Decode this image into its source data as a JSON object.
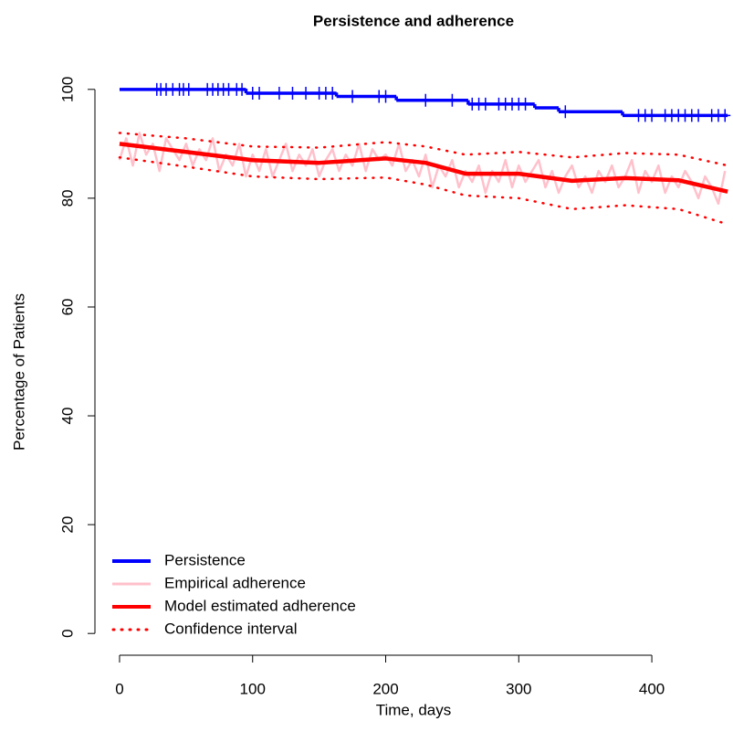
{
  "chart_data": {
    "type": "line",
    "title": "Persistence and adherence",
    "x_label": "Time, days",
    "y_label": "Percentage of Patients",
    "xlim": [
      -18.5,
      461
    ],
    "ylim": [
      -4,
      104
    ],
    "xticks": [
      0,
      100,
      200,
      300,
      400
    ],
    "yticks": [
      0,
      20,
      40,
      60,
      80,
      100
    ],
    "legend_position": "bottom-left",
    "series": [
      {
        "name": "Persistence",
        "color": "#0000ff",
        "style": "step",
        "x": [
          0,
          95,
          163,
          208,
          262,
          312,
          330,
          378,
          457
        ],
        "values": [
          100,
          99.3,
          98.7,
          98,
          97.3,
          96.6,
          95.9,
          95.2,
          95.2
        ]
      },
      {
        "name": "Empirical adherence",
        "color": "#ffc0cb",
        "style": "solid",
        "x": [
          0,
          5,
          10,
          15,
          20,
          25,
          30,
          35,
          40,
          45,
          50,
          55,
          60,
          65,
          70,
          75,
          80,
          85,
          90,
          95,
          100,
          105,
          110,
          115,
          120,
          125,
          130,
          135,
          140,
          145,
          150,
          155,
          160,
          165,
          170,
          175,
          180,
          185,
          190,
          195,
          200,
          205,
          210,
          215,
          220,
          225,
          230,
          235,
          240,
          245,
          250,
          255,
          260,
          265,
          270,
          275,
          280,
          285,
          290,
          295,
          300,
          305,
          310,
          315,
          320,
          325,
          330,
          335,
          340,
          345,
          350,
          355,
          360,
          365,
          370,
          375,
          380,
          385,
          390,
          395,
          400,
          405,
          410,
          415,
          420,
          425,
          430,
          435,
          440,
          445,
          450,
          455
        ],
        "values": [
          87,
          91,
          86,
          92,
          88,
          90,
          85,
          91,
          89,
          87,
          90,
          86,
          89,
          87,
          91,
          85,
          88,
          86,
          90,
          84,
          88,
          85,
          89,
          84,
          87,
          90,
          85,
          88,
          86,
          89,
          84,
          87,
          89,
          85,
          88,
          86,
          90,
          85,
          89,
          87,
          88,
          86,
          90,
          85,
          87,
          84,
          88,
          82,
          86,
          84,
          87,
          82,
          85,
          83,
          86,
          81,
          85,
          83,
          87,
          82,
          86,
          83,
          85,
          87,
          82,
          85,
          81,
          84,
          86,
          82,
          84,
          81,
          85,
          83,
          86,
          82,
          84,
          87,
          81,
          85,
          83,
          86,
          81,
          84,
          82,
          85,
          83,
          80,
          84,
          82,
          79,
          85
        ]
      },
      {
        "name": "Model estimated adherence",
        "color": "#ff0000",
        "style": "thick",
        "x": [
          0,
          50,
          100,
          150,
          200,
          230,
          260,
          300,
          340,
          380,
          420,
          457
        ],
        "values": [
          90,
          88.5,
          87,
          86.5,
          87.3,
          86.5,
          84.5,
          84.5,
          83.2,
          83.7,
          83.3,
          81.2
        ]
      },
      {
        "name": "Confidence interval",
        "color": "#ff0000",
        "style": "dotted",
        "x": [
          0,
          50,
          100,
          150,
          200,
          230,
          260,
          300,
          340,
          380,
          420,
          457
        ],
        "values": [
          92,
          91,
          89.5,
          89.3,
          90.3,
          89.5,
          88,
          88.5,
          87.5,
          88.3,
          88,
          86
        ],
        "lower": [
          87.5,
          85.8,
          84,
          83.5,
          83.8,
          82.5,
          80.5,
          80,
          78,
          78.7,
          78,
          75.2
        ]
      }
    ],
    "censor_marks": {
      "color": "#0000ff",
      "x": [
        28,
        31,
        35,
        40,
        45,
        48,
        52,
        66,
        70,
        74,
        78,
        82,
        88,
        92,
        100,
        105,
        120,
        130,
        140,
        150,
        155,
        160,
        175,
        195,
        200,
        230,
        250,
        265,
        270,
        275,
        285,
        290,
        295,
        300,
        305,
        335,
        390,
        395,
        400,
        410,
        415,
        420,
        425,
        430,
        435,
        445,
        450,
        455
      ],
      "values": [
        100,
        100,
        100,
        100,
        100,
        100,
        100,
        100,
        100,
        100,
        100,
        100,
        100,
        100,
        99.3,
        99.3,
        99.3,
        99.3,
        99.3,
        99.3,
        99.3,
        99.3,
        98.7,
        98.7,
        98.7,
        98,
        98,
        97.3,
        97.3,
        97.3,
        97.3,
        97.3,
        97.3,
        97.3,
        97.3,
        95.9,
        95.2,
        95.2,
        95.2,
        95.2,
        95.2,
        95.2,
        95.2,
        95.2,
        95.2,
        95.2,
        95.2,
        95.2
      ]
    }
  }
}
